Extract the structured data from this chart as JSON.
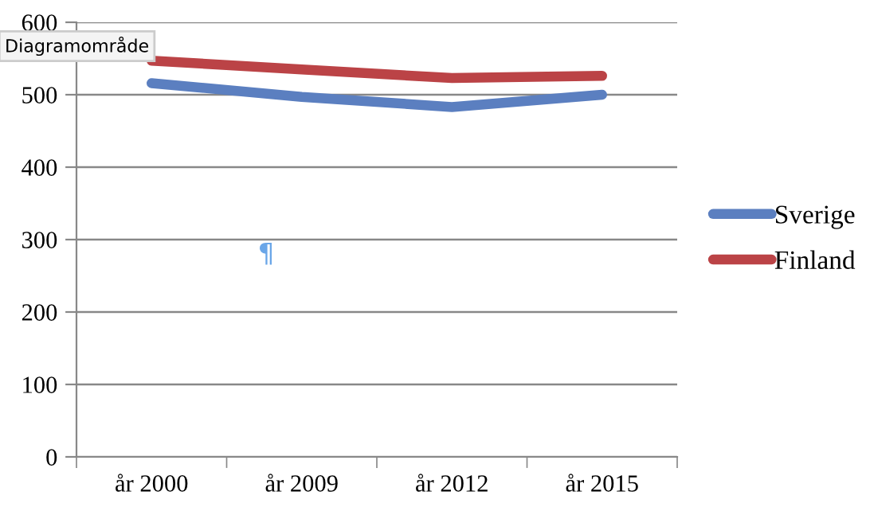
{
  "chart_data": {
    "type": "line",
    "categories": [
      "år 2000",
      "år 2009",
      "år 2012",
      "år 2015"
    ],
    "series": [
      {
        "name": "Sverige",
        "color": "#5b7fc0",
        "values": [
          516,
          497,
          483,
          500
        ]
      },
      {
        "name": "Finland",
        "color": "#bb4346",
        "values": [
          547,
          535,
          523,
          526
        ]
      }
    ],
    "ylim": [
      0,
      600
    ],
    "yticks": [
      0,
      100,
      200,
      300,
      400,
      500,
      600
    ],
    "grid": "y",
    "legend": "right",
    "marker": "none",
    "line_style": "solid",
    "annotations": [
      "Diagramområde",
      "¶"
    ]
  }
}
